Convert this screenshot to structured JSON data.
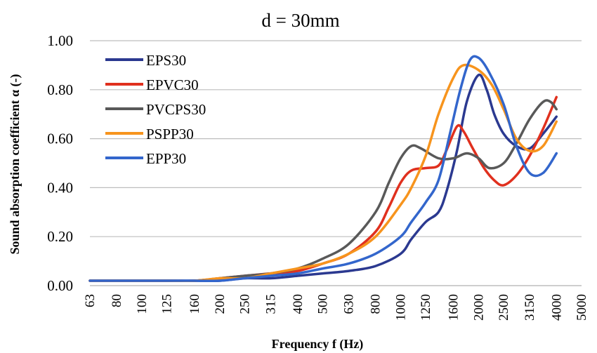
{
  "chart_data": {
    "type": "line",
    "title": "d = 30mm",
    "xlabel": "Frequency f (Hz)",
    "ylabel": "Sound absorption coefficient α (-)",
    "ylim": [
      0,
      1
    ],
    "yticks": [
      "0.00",
      "0.20",
      "0.40",
      "0.60",
      "0.80",
      "1.00"
    ],
    "x": [
      63,
      80,
      100,
      125,
      160,
      200,
      250,
      315,
      400,
      500,
      630,
      800,
      1000,
      1250,
      1600,
      2000,
      2500,
      3150,
      4000,
      5000
    ],
    "x_tick_labels": [
      "63",
      "80",
      "100",
      "125",
      "160",
      "200",
      "250",
      "315",
      "400",
      "500",
      "630",
      "800",
      "1000",
      "1250",
      "1600",
      "2000",
      "2500",
      "3150",
      "4000",
      "5000"
    ],
    "grid": "horizontal",
    "legend_position": "top-left",
    "series": [
      {
        "name": "EPS30",
        "color": "#2b3990",
        "points": [
          [
            63,
            0.02
          ],
          [
            80,
            0.02
          ],
          [
            100,
            0.02
          ],
          [
            125,
            0.02
          ],
          [
            160,
            0.02
          ],
          [
            200,
            0.02
          ],
          [
            250,
            0.03
          ],
          [
            315,
            0.03
          ],
          [
            400,
            0.04
          ],
          [
            500,
            0.05
          ],
          [
            630,
            0.06
          ],
          [
            800,
            0.08
          ],
          [
            1000,
            0.13
          ],
          [
            1100,
            0.19
          ],
          [
            1250,
            0.26
          ],
          [
            1400,
            0.3
          ],
          [
            1500,
            0.38
          ],
          [
            1650,
            0.55
          ],
          [
            1800,
            0.75
          ],
          [
            2000,
            0.86
          ],
          [
            2150,
            0.8
          ],
          [
            2300,
            0.7
          ],
          [
            2500,
            0.62
          ],
          [
            2800,
            0.57
          ],
          [
            3150,
            0.56
          ],
          [
            3550,
            0.62
          ],
          [
            4000,
            0.69
          ]
        ]
      },
      {
        "name": "EPVC30",
        "color": "#e0301e",
        "points": [
          [
            63,
            0.02
          ],
          [
            80,
            0.02
          ],
          [
            100,
            0.02
          ],
          [
            125,
            0.02
          ],
          [
            160,
            0.02
          ],
          [
            200,
            0.03
          ],
          [
            250,
            0.04
          ],
          [
            315,
            0.05
          ],
          [
            400,
            0.06
          ],
          [
            500,
            0.09
          ],
          [
            630,
            0.13
          ],
          [
            800,
            0.22
          ],
          [
            900,
            0.32
          ],
          [
            1000,
            0.42
          ],
          [
            1100,
            0.47
          ],
          [
            1250,
            0.48
          ],
          [
            1400,
            0.49
          ],
          [
            1500,
            0.55
          ],
          [
            1650,
            0.65
          ],
          [
            1750,
            0.63
          ],
          [
            1900,
            0.56
          ],
          [
            2100,
            0.48
          ],
          [
            2300,
            0.43
          ],
          [
            2500,
            0.41
          ],
          [
            2800,
            0.45
          ],
          [
            3150,
            0.53
          ],
          [
            3550,
            0.64
          ],
          [
            4000,
            0.77
          ]
        ]
      },
      {
        "name": "PVCPS30",
        "color": "#595959",
        "points": [
          [
            63,
            0.02
          ],
          [
            80,
            0.02
          ],
          [
            100,
            0.02
          ],
          [
            125,
            0.02
          ],
          [
            160,
            0.02
          ],
          [
            200,
            0.03
          ],
          [
            250,
            0.04
          ],
          [
            315,
            0.05
          ],
          [
            400,
            0.07
          ],
          [
            500,
            0.11
          ],
          [
            630,
            0.17
          ],
          [
            800,
            0.3
          ],
          [
            900,
            0.42
          ],
          [
            1000,
            0.52
          ],
          [
            1100,
            0.57
          ],
          [
            1200,
            0.56
          ],
          [
            1400,
            0.52
          ],
          [
            1600,
            0.52
          ],
          [
            1800,
            0.54
          ],
          [
            2000,
            0.52
          ],
          [
            2200,
            0.48
          ],
          [
            2500,
            0.5
          ],
          [
            2800,
            0.58
          ],
          [
            3150,
            0.68
          ],
          [
            3550,
            0.75
          ],
          [
            3800,
            0.75
          ],
          [
            4000,
            0.72
          ]
        ]
      },
      {
        "name": "PSPP30",
        "color": "#f7941d",
        "points": [
          [
            63,
            0.02
          ],
          [
            80,
            0.02
          ],
          [
            100,
            0.02
          ],
          [
            125,
            0.02
          ],
          [
            160,
            0.02
          ],
          [
            200,
            0.03
          ],
          [
            250,
            0.03
          ],
          [
            315,
            0.05
          ],
          [
            400,
            0.07
          ],
          [
            500,
            0.09
          ],
          [
            630,
            0.13
          ],
          [
            800,
            0.2
          ],
          [
            1000,
            0.33
          ],
          [
            1100,
            0.4
          ],
          [
            1250,
            0.53
          ],
          [
            1400,
            0.7
          ],
          [
            1600,
            0.85
          ],
          [
            1750,
            0.9
          ],
          [
            2000,
            0.88
          ],
          [
            2250,
            0.82
          ],
          [
            2500,
            0.72
          ],
          [
            2800,
            0.6
          ],
          [
            3150,
            0.55
          ],
          [
            3550,
            0.57
          ],
          [
            4000,
            0.67
          ]
        ]
      },
      {
        "name": "EPP30",
        "color": "#3366cc",
        "points": [
          [
            63,
            0.02
          ],
          [
            80,
            0.02
          ],
          [
            100,
            0.02
          ],
          [
            125,
            0.02
          ],
          [
            160,
            0.02
          ],
          [
            200,
            0.02
          ],
          [
            250,
            0.03
          ],
          [
            315,
            0.04
          ],
          [
            400,
            0.05
          ],
          [
            500,
            0.07
          ],
          [
            630,
            0.09
          ],
          [
            800,
            0.13
          ],
          [
            1000,
            0.2
          ],
          [
            1100,
            0.26
          ],
          [
            1250,
            0.34
          ],
          [
            1400,
            0.43
          ],
          [
            1550,
            0.62
          ],
          [
            1700,
            0.8
          ],
          [
            1850,
            0.92
          ],
          [
            2000,
            0.93
          ],
          [
            2200,
            0.87
          ],
          [
            2500,
            0.74
          ],
          [
            2800,
            0.57
          ],
          [
            3150,
            0.46
          ],
          [
            3550,
            0.46
          ],
          [
            4000,
            0.54
          ]
        ]
      }
    ]
  }
}
